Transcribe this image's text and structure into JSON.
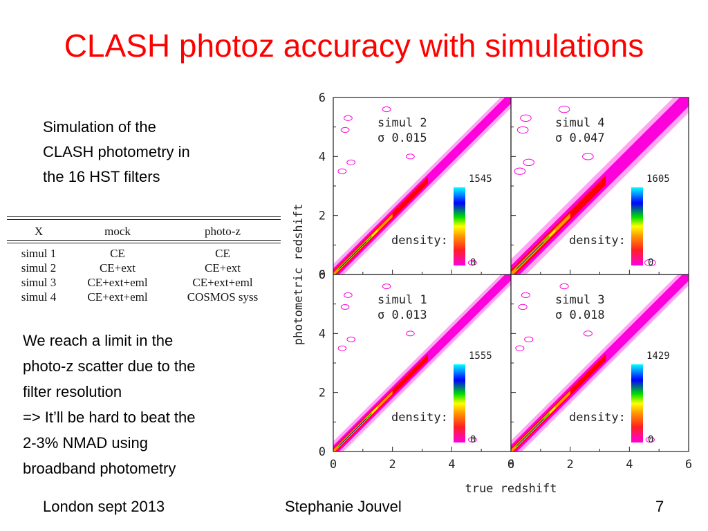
{
  "slide": {
    "title": "CLASH photoz accuracy with simulations",
    "intro_lines": [
      "Simulation of the",
      "CLASH photometry in",
      "the 16 HST filters"
    ],
    "note_lines": [
      "We reach a limit in the",
      "photo-z scatter due to the",
      "filter resolution",
      "=> It’ll be hard to beat the",
      "2-3% NMAD using",
      "broadband photometry"
    ],
    "footer": {
      "left": "London sept 2013",
      "center": "Stephanie Jouvel",
      "page": "7"
    },
    "colors": {
      "title": "#ff0000",
      "contour": "#ff00dd"
    }
  },
  "table": {
    "headers": [
      "X",
      "mock",
      "photo-z"
    ],
    "rows": [
      [
        "simul 1",
        "CE",
        "CE"
      ],
      [
        "simul 2",
        "CE+ext",
        "CE+ext"
      ],
      [
        "simul 3",
        "CE+ext+eml",
        "CE+ext+eml"
      ],
      [
        "simul 4",
        "CE+ext+eml",
        "COSMOS syss"
      ]
    ]
  },
  "chart_data": {
    "type": "scatter",
    "xlabel": "true redshift",
    "ylabel": "photometric redshift",
    "xlim": [
      0,
      6
    ],
    "ylim": [
      0,
      6
    ],
    "xticks": [
      "0",
      "2",
      "4",
      "6"
    ],
    "yticks": [
      "0",
      "2",
      "4",
      "6"
    ],
    "colorbar_label": "density:",
    "colorbar_min": "0",
    "panels": [
      {
        "name": "simul 2",
        "sigma": "σ 0.015",
        "colorbar_max": "1545",
        "spread": 0.015
      },
      {
        "name": "simul 4",
        "sigma": "σ 0.047",
        "colorbar_max": "1605",
        "spread": 0.047
      },
      {
        "name": "simul 1",
        "sigma": "σ 0.013",
        "colorbar_max": "1555",
        "spread": 0.013
      },
      {
        "name": "simul 3",
        "sigma": "σ 0.018",
        "colorbar_max": "1429",
        "spread": 0.018
      }
    ]
  }
}
